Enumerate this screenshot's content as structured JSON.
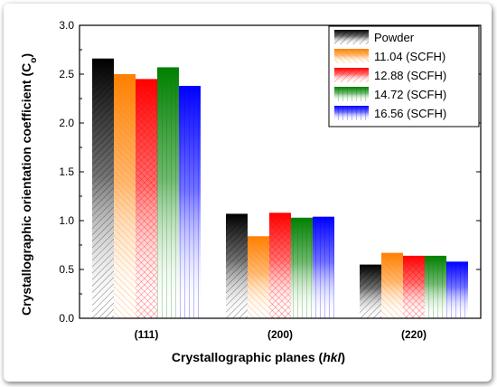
{
  "chart_data": {
    "type": "bar",
    "categories": [
      "(111)",
      "(200)",
      "(220)"
    ],
    "series": [
      {
        "name": "Powder",
        "values": [
          2.66,
          1.07,
          0.55
        ],
        "color": "#000000"
      },
      {
        "name": "11.04 (SCFH)",
        "values": [
          2.5,
          0.84,
          0.67
        ],
        "color": "#ff8000"
      },
      {
        "name": "12.88 (SCFH)",
        "values": [
          2.45,
          1.08,
          0.64
        ],
        "color": "#ff0000"
      },
      {
        "name": "14.72 (SCFH)",
        "values": [
          2.57,
          1.03,
          0.64
        ],
        "color": "#008000"
      },
      {
        "name": "16.56 (SCFH)",
        "values": [
          2.38,
          1.04,
          0.58
        ],
        "color": "#0000ff"
      }
    ],
    "ylabel_main": "Crystallographic orientation coefficient (C",
    "ylabel_sub": "o",
    "ylabel_end": ")",
    "xlabel_main": "Crystallographic planes ",
    "xlabel_italic": "hkl",
    "xlabel_paren_open": "(",
    "xlabel_paren_close": ")",
    "ylim": [
      0,
      3.0
    ],
    "yticks": [
      "0.0",
      "0.5",
      "1.0",
      "1.5",
      "2.0",
      "2.5",
      "3.0"
    ],
    "grid": false,
    "legend_position": "top-right"
  }
}
